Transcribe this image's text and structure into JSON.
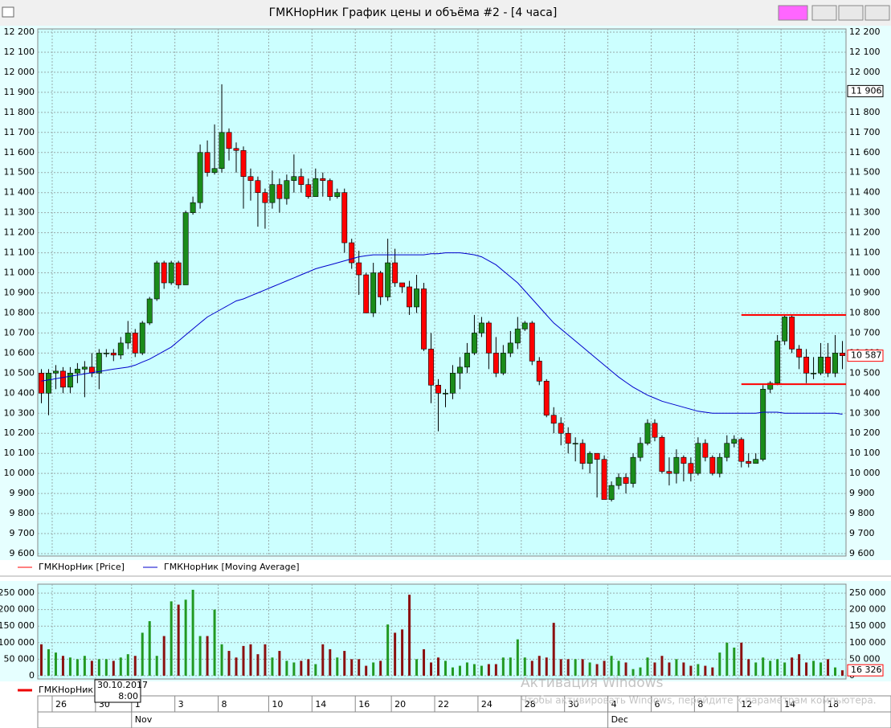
{
  "window_title": "ГМКНорНик График цены и объёма #2 - [4 часа]",
  "watermark": {
    "title": "Активация Windows",
    "text": "Чтобы активировать Windows, перейдите к параметрам компьютера."
  },
  "tooltip": {
    "date": "30.10.2017",
    "time": "8:00"
  },
  "chart_data": [
    {
      "type": "candlestick",
      "legend": [
        "ГМКНорНик [Price]",
        "ГМКНорНик [Moving Average]"
      ],
      "up_color": "#1a8c1a",
      "down_color": "#ff0000",
      "ma_color": "#0000cc",
      "level_color": "#ff0000",
      "grid": true,
      "categories": [
        null,
        null,
        "26",
        null,
        null,
        null,
        null,
        null,
        "30",
        null,
        null,
        null,
        null,
        "1",
        null,
        null,
        null,
        null,
        null,
        "3",
        null,
        null,
        null,
        null,
        null,
        "8",
        null,
        null,
        null,
        null,
        null,
        null,
        "10",
        null,
        null,
        null,
        null,
        null,
        "14",
        null,
        null,
        null,
        null,
        null,
        "16",
        null,
        null,
        null,
        null,
        "20",
        null,
        null,
        null,
        null,
        null,
        "22",
        null,
        null,
        null,
        null,
        null,
        "24",
        null,
        null,
        null,
        null,
        null,
        "28",
        null,
        null,
        null,
        null,
        null,
        "30",
        null,
        null,
        null,
        null,
        null,
        "4",
        null,
        null,
        null,
        null,
        null,
        "6",
        null,
        null,
        null,
        null,
        null,
        "8",
        null,
        null,
        null,
        null,
        null,
        "12",
        null,
        null,
        null,
        null,
        null,
        "14",
        null,
        null,
        null,
        null,
        null,
        "18",
        null,
        null
      ],
      "months": [
        null,
        null,
        null,
        null,
        null,
        null,
        null,
        null,
        null,
        null,
        null,
        null,
        null,
        "Nov",
        null,
        null,
        null,
        null,
        null,
        null,
        null,
        null,
        null,
        null,
        null,
        null,
        null,
        null,
        null,
        null,
        null,
        null,
        null,
        null,
        null,
        null,
        null,
        null,
        null,
        null,
        null,
        null,
        null,
        null,
        null,
        null,
        null,
        null,
        null,
        null,
        null,
        null,
        null,
        null,
        null,
        null,
        null,
        null,
        null,
        null,
        null,
        null,
        null,
        null,
        null,
        null,
        null,
        null,
        null,
        null,
        null,
        null,
        null,
        null,
        null,
        null,
        null,
        null,
        null,
        "Dec",
        null,
        null,
        null,
        null,
        null,
        null,
        null,
        null,
        null,
        null,
        null,
        null,
        null,
        null,
        null,
        null,
        null,
        null,
        null,
        null,
        null,
        null,
        null,
        null,
        null,
        null,
        null,
        null,
        null,
        null,
        null,
        null
      ],
      "open": [
        10500,
        10400,
        10500,
        10510,
        10430,
        10500,
        10520,
        10530,
        10500,
        10600,
        10600,
        10590,
        10650,
        10700,
        10600,
        10750,
        10870,
        11050,
        10950,
        11050,
        10940,
        11300,
        11350,
        11600,
        11500,
        11520,
        11700,
        11620,
        11610,
        11480,
        11460,
        11400,
        11350,
        11440,
        11370,
        11460,
        11480,
        11440,
        11380,
        11470,
        11460,
        11380,
        11400,
        11150,
        11050,
        10990,
        10800,
        11000,
        10880,
        11050,
        10950,
        10930,
        10830,
        10920,
        10620,
        10440,
        10400,
        10400,
        10500,
        10530,
        10600,
        10700,
        10750,
        10600,
        10500,
        10600,
        10650,
        10720,
        10750,
        10560,
        10460,
        10290,
        10250,
        10200,
        10150,
        10150,
        10050,
        10100,
        10070,
        9870,
        9940,
        9980,
        9950,
        10080,
        10150,
        10250,
        10180,
        10010,
        10000,
        10080,
        10050,
        10000,
        10150,
        10080,
        10000,
        10080,
        10150,
        10170,
        10060,
        10050,
        10070,
        10420,
        10450,
        10660,
        10780,
        10620,
        10580,
        10500,
        10500,
        10580,
        10500,
        10600
      ],
      "high": [
        10520,
        10520,
        10540,
        10530,
        10530,
        10550,
        10560,
        10600,
        10620,
        10620,
        10620,
        10680,
        10760,
        10720,
        10760,
        10880,
        11060,
        11060,
        11060,
        11060,
        11310,
        11380,
        11640,
        11660,
        11740,
        11940,
        11720,
        11650,
        11630,
        11520,
        11480,
        11420,
        11510,
        11470,
        11490,
        11590,
        11520,
        11470,
        11520,
        11500,
        11470,
        11420,
        11420,
        11170,
        11110,
        11000,
        11050,
        11010,
        11170,
        11120,
        10950,
        10960,
        10990,
        10950,
        10700,
        10470,
        10420,
        10540,
        10580,
        10650,
        10790,
        10780,
        10760,
        10680,
        10640,
        10710,
        10780,
        10760,
        10760,
        10580,
        10470,
        10330,
        10280,
        10230,
        10180,
        10170,
        10110,
        10100,
        10090,
        9960,
        10000,
        10000,
        10100,
        10180,
        10270,
        10270,
        10190,
        10080,
        10120,
        10090,
        10080,
        10180,
        10170,
        10090,
        10100,
        10190,
        10190,
        10180,
        10100,
        10100,
        10440,
        10460,
        10690,
        10790,
        10790,
        10640,
        10620,
        10580,
        10650,
        10650,
        10690,
        10660
      ],
      "low": [
        10350,
        10290,
        10420,
        10400,
        10400,
        10450,
        10380,
        10480,
        10420,
        10580,
        10560,
        10570,
        10620,
        10580,
        10590,
        10740,
        10860,
        10920,
        10940,
        10920,
        10940,
        11290,
        11320,
        11480,
        11490,
        11500,
        11560,
        11500,
        11320,
        11360,
        11230,
        11220,
        11320,
        11300,
        11340,
        11400,
        11400,
        11370,
        11380,
        11380,
        11360,
        11370,
        11100,
        11020,
        10890,
        10800,
        10780,
        10840,
        10860,
        10930,
        10900,
        10790,
        10800,
        10610,
        10350,
        10210,
        10330,
        10370,
        10420,
        10500,
        10590,
        10680,
        10520,
        10480,
        10490,
        10580,
        10620,
        10710,
        10540,
        10440,
        10280,
        10200,
        10140,
        10100,
        10060,
        10020,
        10000,
        9880,
        9870,
        9860,
        9920,
        9900,
        9930,
        10060,
        10140,
        10160,
        10000,
        9940,
        9950,
        9960,
        9960,
        9990,
        10060,
        9990,
        9980,
        10060,
        10130,
        10030,
        10030,
        10050,
        10060,
        10400,
        10440,
        10640,
        10600,
        10520,
        10450,
        10470,
        10490,
        10480,
        10480,
        10520
      ],
      "close": [
        10400,
        10500,
        10510,
        10430,
        10500,
        10520,
        10530,
        10500,
        10600,
        10600,
        10590,
        10650,
        10700,
        10600,
        10750,
        10870,
        11050,
        10950,
        11050,
        10940,
        11300,
        11350,
        11600,
        11500,
        11520,
        11700,
        11620,
        11610,
        11480,
        11460,
        11400,
        11350,
        11440,
        11370,
        11460,
        11480,
        11440,
        11380,
        11470,
        11460,
        11380,
        11400,
        11150,
        11050,
        10990,
        10800,
        11000,
        10880,
        11050,
        10950,
        10930,
        10830,
        10920,
        10620,
        10440,
        10400,
        10400,
        10500,
        10530,
        10600,
        10700,
        10750,
        10600,
        10500,
        10600,
        10650,
        10720,
        10750,
        10560,
        10460,
        10290,
        10250,
        10200,
        10150,
        10150,
        10050,
        10100,
        10070,
        9870,
        9940,
        9980,
        9950,
        10080,
        10150,
        10250,
        10180,
        10010,
        10000,
        10080,
        10050,
        10000,
        10150,
        10080,
        10000,
        10080,
        10150,
        10170,
        10060,
        10050,
        10070,
        10420,
        10450,
        10660,
        10780,
        10620,
        10580,
        10500,
        10500,
        10580,
        10500,
        10600,
        10587
      ],
      "ma": [
        10460,
        10466,
        10472,
        10478,
        10484,
        10490,
        10496,
        10502,
        10508,
        10514,
        10520,
        10525,
        10530,
        10540,
        10555,
        10570,
        10590,
        10610,
        10630,
        10660,
        10690,
        10720,
        10750,
        10780,
        10800,
        10820,
        10840,
        10860,
        10870,
        10885,
        10900,
        10915,
        10930,
        10945,
        10960,
        10975,
        10990,
        11005,
        11020,
        11030,
        11040,
        11050,
        11060,
        11070,
        11080,
        11085,
        11090,
        11090,
        11090,
        11090,
        11090,
        11090,
        11090,
        11090,
        11095,
        11095,
        11100,
        11100,
        11100,
        11095,
        11090,
        11080,
        11060,
        11040,
        11010,
        10980,
        10950,
        10910,
        10870,
        10830,
        10790,
        10750,
        10720,
        10690,
        10660,
        10630,
        10600,
        10570,
        10540,
        10510,
        10480,
        10455,
        10430,
        10410,
        10390,
        10375,
        10360,
        10350,
        10340,
        10330,
        10320,
        10310,
        10305,
        10300,
        10300,
        10300,
        10300,
        10300,
        10300,
        10300,
        10305,
        10305,
        10305,
        10300,
        10300,
        10300,
        10300,
        10300,
        10300,
        10300,
        10300,
        10295
      ],
      "levels": [
        10790,
        10445
      ],
      "last_label": "10 587",
      "marker": {
        "value": 11906,
        "label": "11 906"
      },
      "ylim": [
        9588,
        12216
      ],
      "yticks": [
        {
          "value": 9600,
          "label": "9 600"
        },
        {
          "value": 9700,
          "label": "9 700"
        },
        {
          "value": 9800,
          "label": "9 800"
        },
        {
          "value": 9900,
          "label": "9 900"
        },
        {
          "value": 10000,
          "label": "10 000"
        },
        {
          "value": 10100,
          "label": "10 100"
        },
        {
          "value": 10200,
          "label": "10 200"
        },
        {
          "value": 10300,
          "label": "10 300"
        },
        {
          "value": 10400,
          "label": "10 400"
        },
        {
          "value": 10500,
          "label": "10 500"
        },
        {
          "value": 10600,
          "label": "10 600"
        },
        {
          "value": 10700,
          "label": "10 700"
        },
        {
          "value": 10800,
          "label": "10 800"
        },
        {
          "value": 10900,
          "label": "10 900"
        },
        {
          "value": 11000,
          "label": "11 000"
        },
        {
          "value": 11100,
          "label": "11 100"
        },
        {
          "value": 11200,
          "label": "11 200"
        },
        {
          "value": 11300,
          "label": "11 300"
        },
        {
          "value": 11400,
          "label": "11 400"
        },
        {
          "value": 11500,
          "label": "11 500"
        },
        {
          "value": 11600,
          "label": "11 600"
        },
        {
          "value": 11700,
          "label": "11 700"
        },
        {
          "value": 11800,
          "label": "11 800"
        },
        {
          "value": 11900,
          "label": "11 900"
        },
        {
          "value": 12000,
          "label": "12 000"
        },
        {
          "value": 12100,
          "label": "12 100"
        },
        {
          "value": 12200,
          "label": "12 200"
        }
      ]
    },
    {
      "type": "bar",
      "legend": "ГМКНорНик",
      "up_color": "#229922",
      "down_color": "#8b1010",
      "values": [
        95000,
        80000,
        70000,
        60000,
        55000,
        50000,
        60000,
        45000,
        50000,
        50000,
        45000,
        55000,
        65000,
        60000,
        130000,
        165000,
        60000,
        120000,
        225000,
        215000,
        230000,
        260000,
        120000,
        120000,
        200000,
        95000,
        75000,
        55000,
        90000,
        95000,
        65000,
        95000,
        55000,
        75000,
        45000,
        40000,
        45000,
        50000,
        35000,
        95000,
        80000,
        55000,
        75000,
        50000,
        50000,
        30000,
        40000,
        45000,
        155000,
        130000,
        140000,
        245000,
        50000,
        80000,
        40000,
        55000,
        45000,
        25000,
        30000,
        40000,
        35000,
        30000,
        35000,
        35000,
        55000,
        55000,
        110000,
        55000,
        45000,
        60000,
        55000,
        160000,
        50000,
        50000,
        50000,
        50000,
        40000,
        35000,
        45000,
        60000,
        45000,
        40000,
        20000,
        25000,
        55000,
        40000,
        60000,
        40000,
        50000,
        40000,
        30000,
        35000,
        30000,
        25000,
        70000,
        100000,
        85000,
        100000,
        50000,
        40000,
        55000,
        45000,
        50000,
        40000,
        55000,
        65000,
        40000,
        45000,
        40000,
        50000,
        25000,
        16326
      ],
      "last_label": "16 326",
      "ylim": [
        -10000,
        277000
      ],
      "yticks": [
        0,
        {
          "value": 50000,
          "label": "50 000"
        },
        {
          "value": 100000,
          "label": "100 000"
        },
        {
          "value": 150000,
          "label": "150 000"
        },
        {
          "value": 200000,
          "label": "200 000"
        },
        {
          "value": 250000,
          "label": "250 000"
        }
      ]
    }
  ]
}
